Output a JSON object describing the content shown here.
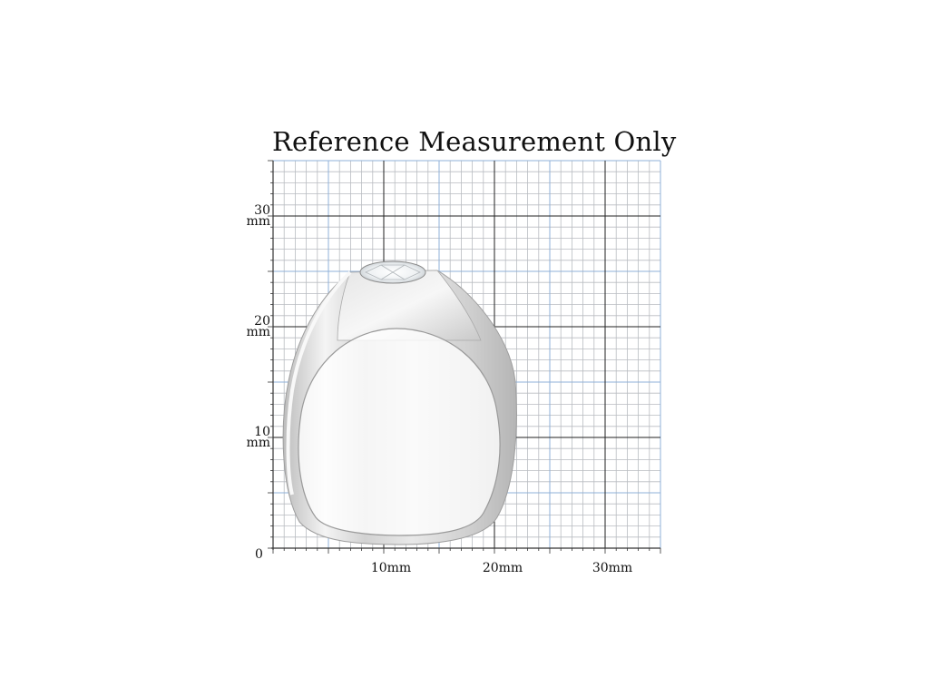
{
  "figure": {
    "title": "Reference Measurement Only",
    "zero_label": "0",
    "y_labels": [
      {
        "value": "30",
        "unit": "mm"
      },
      {
        "value": "20",
        "unit": "mm"
      },
      {
        "value": "10",
        "unit": "mm"
      }
    ],
    "x_labels": [
      "10mm",
      "20mm",
      "30mm"
    ],
    "grid": {
      "minor_color": "#b9bcc1",
      "mid_color": "#8fb0d8",
      "major_color": "#222222",
      "background": "#ffffff"
    },
    "ring": {
      "metal_color": "#d6d6d6",
      "stone": "round-clear-gemstone"
    }
  }
}
